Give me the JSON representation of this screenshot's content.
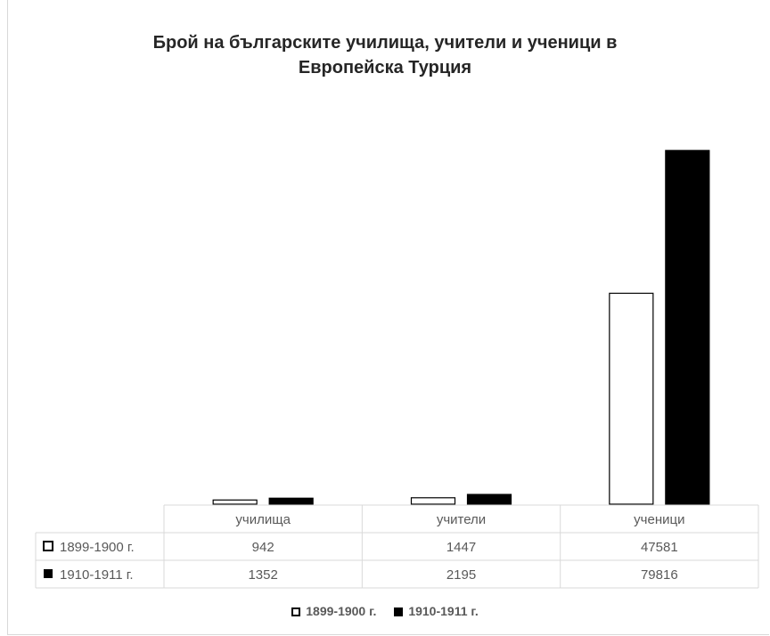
{
  "chart_data": {
    "type": "bar",
    "title_lines": [
      "Брой на българските училища, учители и ученици в",
      "Европейска Турция"
    ],
    "categories": [
      "училища",
      "учители",
      "ученици"
    ],
    "series": [
      {
        "name": "1899-1900 г.",
        "values": [
          942,
          1447,
          47581
        ],
        "fill": "#ffffff",
        "stroke": "#000000"
      },
      {
        "name": "1910-1911 г.",
        "values": [
          1352,
          2195,
          79816
        ],
        "fill": "#000000",
        "stroke": "#000000"
      }
    ],
    "ylim": [
      0,
      80000
    ],
    "data_table": true,
    "legend_position": "bottom",
    "grid": false
  }
}
